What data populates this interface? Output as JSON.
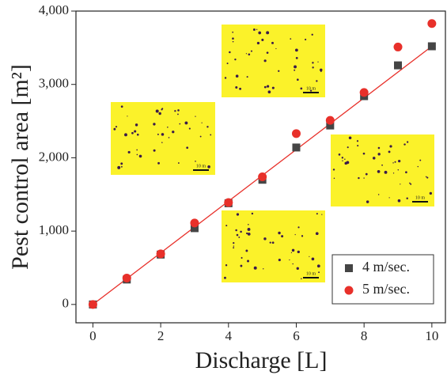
{
  "chart_data": {
    "type": "scatter",
    "x_label": "Discharge [L]",
    "y_label": "Pest control area [m²]",
    "xlim": [
      -0.5,
      10.4
    ],
    "ylim": [
      -250,
      4000
    ],
    "xticks": [
      0,
      2,
      4,
      6,
      8,
      10
    ],
    "yticks": [
      0,
      {
        "value": 1000,
        "label": "1,000"
      },
      {
        "value": 2000,
        "label": "2,000"
      },
      {
        "value": 3000,
        "label": "3,000"
      },
      {
        "value": 4000,
        "label": "4,000"
      }
    ],
    "x": [
      0,
      1,
      2,
      3,
      4,
      5,
      6,
      7,
      8,
      9,
      10
    ],
    "series": [
      {
        "name": "4 m/sec.",
        "color": "#454545",
        "marker": "square",
        "values": [
          0,
          340,
          680,
          1040,
          1380,
          1700,
          2140,
          2440,
          2840,
          3260,
          3520
        ]
      },
      {
        "name": "5 m/sec.",
        "color": "#e8302a",
        "marker": "circle",
        "values": [
          0,
          360,
          690,
          1110,
          1390,
          1740,
          2330,
          2510,
          2890,
          3510,
          3830
        ]
      }
    ],
    "fit_line": {
      "x": [
        0,
        10
      ],
      "values": [
        0,
        3520
      ],
      "color": "#e8302a"
    },
    "legend": "lower right",
    "inset_scale_label": "10 m"
  }
}
